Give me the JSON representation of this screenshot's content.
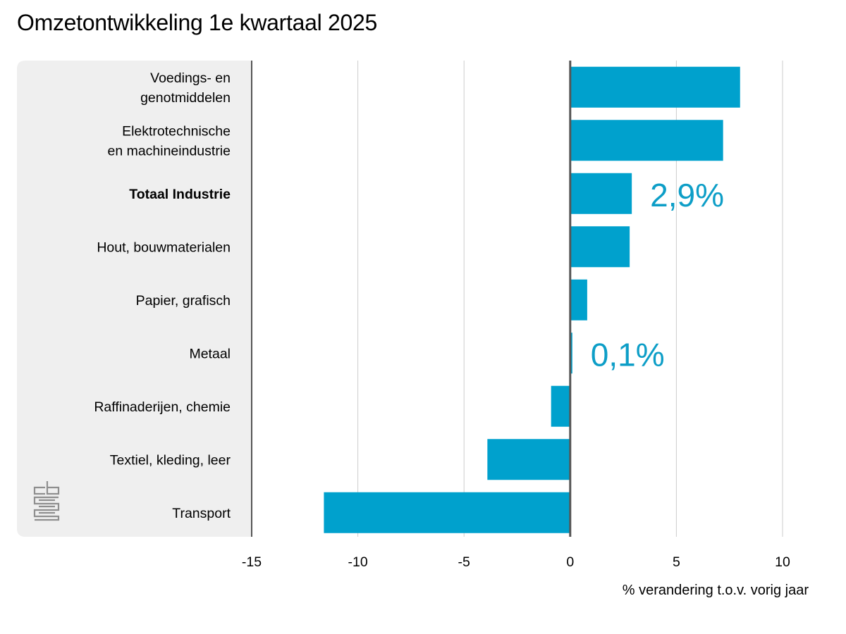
{
  "title": "Omzetontwikkeling 1e kwartaal 2025",
  "colors": {
    "bar": "#00a1cd",
    "label_highlight": "#0d9ec7",
    "panel": "#efefef",
    "grid": "#cccccc",
    "axis": "#555555"
  },
  "logo": {
    "name": "cbs logo",
    "text": "cbs"
  },
  "chart_data": {
    "type": "bar",
    "orientation": "horizontal",
    "categories": [
      "Voedings- en genotmiddelen",
      "Elektrotechnische en machineindustrie",
      "Totaal Industrie",
      "Hout, bouwmaterialen",
      "Papier, grafisch",
      "Metaal",
      "Raffinaderijen, chemie",
      "Textiel, kleding, leer",
      "Transport"
    ],
    "category_lines": [
      [
        "Voedings- en",
        "genotmiddelen"
      ],
      [
        "Elektrotechnische",
        "en machineindustrie"
      ],
      [
        "Totaal Industrie"
      ],
      [
        "Hout, bouwmaterialen"
      ],
      [
        "Papier, grafisch"
      ],
      [
        "Metaal"
      ],
      [
        "Raffinaderijen, chemie"
      ],
      [
        "Textiel, kleding, leer"
      ],
      [
        "Transport"
      ]
    ],
    "bold_categories": [
      "Totaal Industrie"
    ],
    "values": [
      8.0,
      7.2,
      2.9,
      2.8,
      0.8,
      0.1,
      -0.9,
      -3.9,
      -11.6
    ],
    "annotations": [
      {
        "category": "Totaal Industrie",
        "text": "2,9%"
      },
      {
        "category": "Metaal",
        "text": "0,1%"
      }
    ],
    "xlim": [
      -15,
      10
    ],
    "xticks": [
      -15,
      -10,
      -5,
      0,
      5,
      10
    ],
    "xtick_labels": [
      "-15",
      "-10",
      "-5",
      "0",
      "5",
      "10"
    ],
    "xlabel": "% verandering t.o.v. vorig jaar",
    "ylabel": "",
    "grid": true
  }
}
